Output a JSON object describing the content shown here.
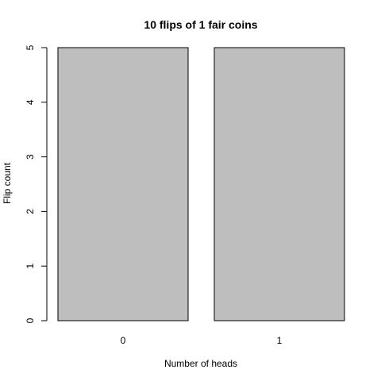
{
  "chart_data": {
    "type": "bar",
    "title": "10 flips of 1 fair coins",
    "xlabel": "Number of heads",
    "ylabel": "Flip count",
    "categories": [
      "0",
      "1"
    ],
    "values": [
      5,
      5
    ],
    "ylim": [
      0,
      5
    ],
    "yticks": [
      0,
      1,
      2,
      3,
      4,
      5
    ],
    "grid": false,
    "legend": "none",
    "bar_color": "#bebebe",
    "bar_edge_color": "#000000"
  }
}
